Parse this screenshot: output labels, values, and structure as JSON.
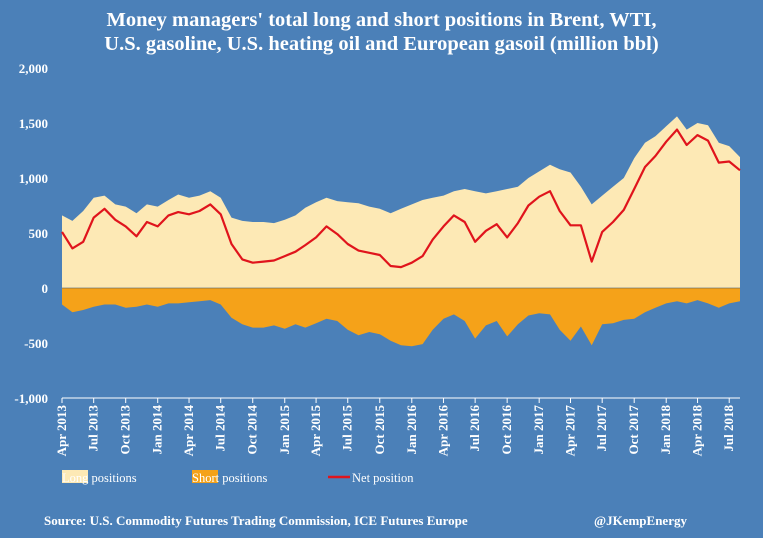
{
  "chart_data": {
    "type": "area",
    "title_line1": "Money managers' total long and short positions in Brent, WTI,",
    "title_line2": "U.S. gasoline, U.S. heating oil and European gasoil  (million bbl)",
    "ylim": [
      -1000,
      2000
    ],
    "yticks": [
      -1000,
      -500,
      0,
      500,
      1000,
      1500,
      2000
    ],
    "ytick_labels": [
      "-1,000",
      "-500",
      "0",
      "500",
      "1,000",
      "1,500",
      "2,000"
    ],
    "x_start": "2013-04-01",
    "x_end": "2018-08-01",
    "xticks": [
      {
        "date": "2013-04-01",
        "label": "Apr 2013"
      },
      {
        "date": "2013-07-01",
        "label": "Jul 2013"
      },
      {
        "date": "2013-10-01",
        "label": "Oct 2013"
      },
      {
        "date": "2014-01-01",
        "label": "Jan 2014"
      },
      {
        "date": "2014-04-01",
        "label": "Apr 2014"
      },
      {
        "date": "2014-07-01",
        "label": "Jul 2014"
      },
      {
        "date": "2014-10-01",
        "label": "Oct 2014"
      },
      {
        "date": "2015-01-01",
        "label": "Jan 2015"
      },
      {
        "date": "2015-04-01",
        "label": "Apr 2015"
      },
      {
        "date": "2015-07-01",
        "label": "Jul 2015"
      },
      {
        "date": "2015-10-01",
        "label": "Oct 2015"
      },
      {
        "date": "2016-01-01",
        "label": "Jan 2016"
      },
      {
        "date": "2016-04-01",
        "label": "Apr 2016"
      },
      {
        "date": "2016-07-01",
        "label": "Jul 2016"
      },
      {
        "date": "2016-10-01",
        "label": "Oct 2016"
      },
      {
        "date": "2017-01-01",
        "label": "Jan 2017"
      },
      {
        "date": "2017-04-01",
        "label": "Apr 2017"
      },
      {
        "date": "2017-07-01",
        "label": "Jul 2017"
      },
      {
        "date": "2017-10-01",
        "label": "Oct 2017"
      },
      {
        "date": "2018-01-01",
        "label": "Jan 2018"
      },
      {
        "date": "2018-04-01",
        "label": "Apr 2018"
      },
      {
        "date": "2018-07-01",
        "label": "Jul 2018"
      }
    ],
    "legend_position": "bottom",
    "grid": false,
    "series": [
      {
        "name": "Long positions",
        "kind": "area",
        "color": "#fde9b5",
        "points": [
          [
            "2013-04-01",
            660
          ],
          [
            "2013-05-01",
            610
          ],
          [
            "2013-06-01",
            700
          ],
          [
            "2013-07-01",
            820
          ],
          [
            "2013-08-01",
            840
          ],
          [
            "2013-09-01",
            760
          ],
          [
            "2013-10-01",
            740
          ],
          [
            "2013-11-01",
            680
          ],
          [
            "2013-12-01",
            760
          ],
          [
            "2014-01-01",
            740
          ],
          [
            "2014-02-01",
            800
          ],
          [
            "2014-03-01",
            850
          ],
          [
            "2014-04-01",
            820
          ],
          [
            "2014-05-01",
            840
          ],
          [
            "2014-06-01",
            880
          ],
          [
            "2014-07-01",
            820
          ],
          [
            "2014-08-01",
            640
          ],
          [
            "2014-09-01",
            610
          ],
          [
            "2014-10-01",
            600
          ],
          [
            "2014-11-01",
            600
          ],
          [
            "2014-12-01",
            590
          ],
          [
            "2015-01-01",
            620
          ],
          [
            "2015-02-01",
            660
          ],
          [
            "2015-03-01",
            730
          ],
          [
            "2015-04-01",
            780
          ],
          [
            "2015-05-01",
            820
          ],
          [
            "2015-06-01",
            790
          ],
          [
            "2015-07-01",
            780
          ],
          [
            "2015-08-01",
            770
          ],
          [
            "2015-09-01",
            740
          ],
          [
            "2015-10-01",
            720
          ],
          [
            "2015-11-01",
            680
          ],
          [
            "2015-12-01",
            720
          ],
          [
            "2016-01-01",
            760
          ],
          [
            "2016-02-01",
            800
          ],
          [
            "2016-03-01",
            820
          ],
          [
            "2016-04-01",
            840
          ],
          [
            "2016-05-01",
            880
          ],
          [
            "2016-06-01",
            900
          ],
          [
            "2016-07-01",
            880
          ],
          [
            "2016-08-01",
            860
          ],
          [
            "2016-09-01",
            880
          ],
          [
            "2016-10-01",
            900
          ],
          [
            "2016-11-01",
            920
          ],
          [
            "2016-12-01",
            1000
          ],
          [
            "2017-01-01",
            1060
          ],
          [
            "2017-02-01",
            1120
          ],
          [
            "2017-03-01",
            1080
          ],
          [
            "2017-04-01",
            1050
          ],
          [
            "2017-05-01",
            920
          ],
          [
            "2017-06-01",
            760
          ],
          [
            "2017-07-01",
            840
          ],
          [
            "2017-08-01",
            920
          ],
          [
            "2017-09-01",
            1000
          ],
          [
            "2017-10-01",
            1180
          ],
          [
            "2017-11-01",
            1320
          ],
          [
            "2017-12-01",
            1380
          ],
          [
            "2018-01-01",
            1470
          ],
          [
            "2018-02-01",
            1560
          ],
          [
            "2018-03-01",
            1440
          ],
          [
            "2018-04-01",
            1500
          ],
          [
            "2018-05-01",
            1480
          ],
          [
            "2018-06-01",
            1320
          ],
          [
            "2018-07-01",
            1290
          ],
          [
            "2018-08-01",
            1190
          ]
        ]
      },
      {
        "name": "Short positions",
        "kind": "area",
        "color": "#f5a219",
        "points": [
          [
            "2013-04-01",
            -150
          ],
          [
            "2013-05-01",
            -220
          ],
          [
            "2013-06-01",
            -200
          ],
          [
            "2013-07-01",
            -170
          ],
          [
            "2013-08-01",
            -150
          ],
          [
            "2013-09-01",
            -150
          ],
          [
            "2013-10-01",
            -180
          ],
          [
            "2013-11-01",
            -170
          ],
          [
            "2013-12-01",
            -150
          ],
          [
            "2014-01-01",
            -170
          ],
          [
            "2014-02-01",
            -140
          ],
          [
            "2014-03-01",
            -140
          ],
          [
            "2014-04-01",
            -130
          ],
          [
            "2014-05-01",
            -120
          ],
          [
            "2014-06-01",
            -110
          ],
          [
            "2014-07-01",
            -150
          ],
          [
            "2014-08-01",
            -270
          ],
          [
            "2014-09-01",
            -330
          ],
          [
            "2014-10-01",
            -360
          ],
          [
            "2014-11-01",
            -360
          ],
          [
            "2014-12-01",
            -340
          ],
          [
            "2015-01-01",
            -370
          ],
          [
            "2015-02-01",
            -330
          ],
          [
            "2015-03-01",
            -360
          ],
          [
            "2015-04-01",
            -320
          ],
          [
            "2015-05-01",
            -280
          ],
          [
            "2015-06-01",
            -300
          ],
          [
            "2015-07-01",
            -380
          ],
          [
            "2015-08-01",
            -430
          ],
          [
            "2015-09-01",
            -400
          ],
          [
            "2015-10-01",
            -420
          ],
          [
            "2015-11-01",
            -480
          ],
          [
            "2015-12-01",
            -520
          ],
          [
            "2016-01-01",
            -530
          ],
          [
            "2016-02-01",
            -510
          ],
          [
            "2016-03-01",
            -380
          ],
          [
            "2016-04-01",
            -280
          ],
          [
            "2016-05-01",
            -240
          ],
          [
            "2016-06-01",
            -300
          ],
          [
            "2016-07-01",
            -460
          ],
          [
            "2016-08-01",
            -340
          ],
          [
            "2016-09-01",
            -300
          ],
          [
            "2016-10-01",
            -440
          ],
          [
            "2016-11-01",
            -330
          ],
          [
            "2016-12-01",
            -250
          ],
          [
            "2017-01-01",
            -230
          ],
          [
            "2017-02-01",
            -240
          ],
          [
            "2017-03-01",
            -380
          ],
          [
            "2017-04-01",
            -480
          ],
          [
            "2017-05-01",
            -350
          ],
          [
            "2017-06-01",
            -520
          ],
          [
            "2017-07-01",
            -330
          ],
          [
            "2017-08-01",
            -320
          ],
          [
            "2017-09-01",
            -290
          ],
          [
            "2017-10-01",
            -280
          ],
          [
            "2017-11-01",
            -220
          ],
          [
            "2017-12-01",
            -180
          ],
          [
            "2018-01-01",
            -140
          ],
          [
            "2018-02-01",
            -120
          ],
          [
            "2018-03-01",
            -140
          ],
          [
            "2018-04-01",
            -110
          ],
          [
            "2018-05-01",
            -140
          ],
          [
            "2018-06-01",
            -180
          ],
          [
            "2018-07-01",
            -140
          ],
          [
            "2018-08-01",
            -120
          ]
        ]
      },
      {
        "name": "Net position",
        "kind": "line",
        "color": "#e0141c",
        "points": [
          [
            "2013-04-01",
            510
          ],
          [
            "2013-05-01",
            360
          ],
          [
            "2013-06-01",
            420
          ],
          [
            "2013-07-01",
            640
          ],
          [
            "2013-08-01",
            720
          ],
          [
            "2013-09-01",
            620
          ],
          [
            "2013-10-01",
            560
          ],
          [
            "2013-11-01",
            470
          ],
          [
            "2013-12-01",
            600
          ],
          [
            "2014-01-01",
            560
          ],
          [
            "2014-02-01",
            660
          ],
          [
            "2014-03-01",
            690
          ],
          [
            "2014-04-01",
            670
          ],
          [
            "2014-05-01",
            700
          ],
          [
            "2014-06-01",
            760
          ],
          [
            "2014-07-01",
            670
          ],
          [
            "2014-08-01",
            400
          ],
          [
            "2014-09-01",
            260
          ],
          [
            "2014-10-01",
            230
          ],
          [
            "2014-11-01",
            240
          ],
          [
            "2014-12-01",
            250
          ],
          [
            "2015-01-01",
            290
          ],
          [
            "2015-02-01",
            330
          ],
          [
            "2015-03-01",
            390
          ],
          [
            "2015-04-01",
            460
          ],
          [
            "2015-05-01",
            560
          ],
          [
            "2015-06-01",
            490
          ],
          [
            "2015-07-01",
            400
          ],
          [
            "2015-08-01",
            340
          ],
          [
            "2015-09-01",
            320
          ],
          [
            "2015-10-01",
            300
          ],
          [
            "2015-11-01",
            200
          ],
          [
            "2015-12-01",
            190
          ],
          [
            "2016-01-01",
            230
          ],
          [
            "2016-02-01",
            290
          ],
          [
            "2016-03-01",
            440
          ],
          [
            "2016-04-01",
            560
          ],
          [
            "2016-05-01",
            660
          ],
          [
            "2016-06-01",
            600
          ],
          [
            "2016-07-01",
            420
          ],
          [
            "2016-08-01",
            520
          ],
          [
            "2016-09-01",
            580
          ],
          [
            "2016-10-01",
            460
          ],
          [
            "2016-11-01",
            590
          ],
          [
            "2016-12-01",
            750
          ],
          [
            "2017-01-01",
            830
          ],
          [
            "2017-02-01",
            880
          ],
          [
            "2017-03-01",
            700
          ],
          [
            "2017-04-01",
            570
          ],
          [
            "2017-05-01",
            570
          ],
          [
            "2017-06-01",
            240
          ],
          [
            "2017-07-01",
            510
          ],
          [
            "2017-08-01",
            600
          ],
          [
            "2017-09-01",
            710
          ],
          [
            "2017-10-01",
            900
          ],
          [
            "2017-11-01",
            1100
          ],
          [
            "2017-12-01",
            1200
          ],
          [
            "2018-01-01",
            1330
          ],
          [
            "2018-02-01",
            1440
          ],
          [
            "2018-03-01",
            1300
          ],
          [
            "2018-04-01",
            1390
          ],
          [
            "2018-05-01",
            1340
          ],
          [
            "2018-06-01",
            1140
          ],
          [
            "2018-07-01",
            1150
          ],
          [
            "2018-08-01",
            1070
          ]
        ]
      }
    ]
  },
  "footer": {
    "source": "Source: U.S. Commodity Futures Trading Commission, ICE Futures Europe",
    "handle": "@JKempEnergy"
  },
  "colors": {
    "background": "#4b80b8",
    "text": "#ffffff"
  }
}
